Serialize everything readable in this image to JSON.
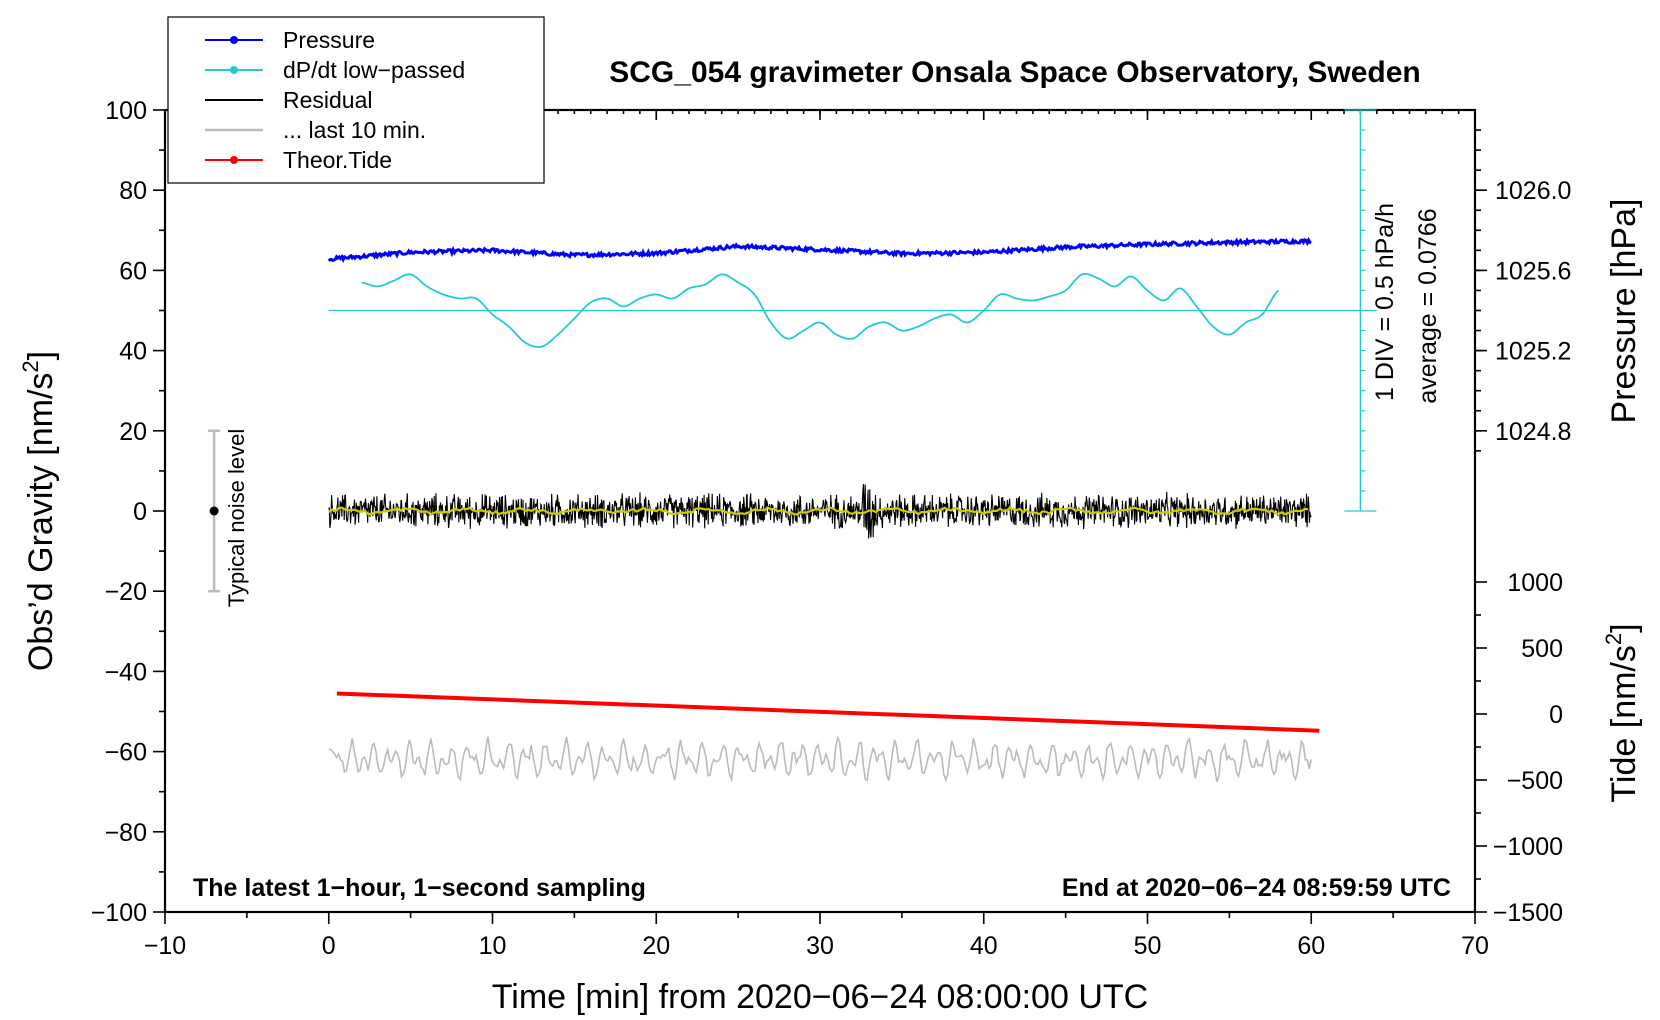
{
  "chart_data": {
    "type": "line",
    "title": "SCG_054 gravimeter Onsala Space Observatory, Sweden",
    "xlabel": "Time [min] from 2020−06−24 08:00:00 UTC",
    "ylabel": "Obs’d Gravity [nm/s",
    "ylabel_sup": "2",
    "ylabel_close": "]",
    "y_right_pressure_label": "Pressure [hPa]",
    "y_right_tide_label": "Tide [nm/s",
    "y_right_tide_sup": "2",
    "y_right_tide_close": "]",
    "xlim": [
      -10,
      70
    ],
    "ylim": [
      -100,
      100
    ],
    "x_ticks": [
      "−10",
      "0",
      "10",
      "20",
      "30",
      "40",
      "50",
      "60",
      "70"
    ],
    "y_ticks": [
      "100",
      "80",
      "60",
      "40",
      "20",
      "0",
      "−20",
      "−40",
      "−60",
      "−80",
      "−100"
    ],
    "pressure_ticks": [
      "1026.0",
      "1025.6",
      "1025.2",
      "1024.8"
    ],
    "pressure_range": [
      1024.6,
      1026.4
    ],
    "tide_ticks": [
      "1000",
      "500",
      "0",
      "−500",
      "−1000",
      "−1500"
    ],
    "tide_range": [
      -1500,
      1500
    ],
    "dpdt_scale_text": "1 DIV = 0.5 hPa/h",
    "dpdt_average_text": "average = 0.0766",
    "noise_bar_label": "Typical noise level",
    "noise_bar": {
      "x": -7,
      "y": 0,
      "low": -20,
      "high": 20
    },
    "annotation_left": "The latest 1−hour, 1−second sampling",
    "annotation_right": "End at 2020−06−24 08:59:59 UTC",
    "legend": [
      {
        "label": "Pressure",
        "color": "#0000ff",
        "marker": true
      },
      {
        "label": "dP/dt low−passed",
        "color": "#22cccc",
        "marker": true
      },
      {
        "label": "Residual",
        "color": "#000000",
        "marker": false
      },
      {
        "label": "... last 10 min.",
        "color": "#bbbbbb",
        "marker": false
      },
      {
        "label": "Theor.Tide",
        "color": "#ff0000",
        "marker": true
      }
    ],
    "series": [
      {
        "name": "Pressure",
        "color": "#0000ff",
        "x": [
          0,
          5,
          10,
          15,
          20,
          25,
          30,
          35,
          40,
          45,
          50,
          55,
          60
        ],
        "y": [
          62.8,
          64.5,
          65,
          63.8,
          64.3,
          66,
          65.2,
          64.2,
          64.5,
          65.8,
          66.5,
          67,
          67.3
        ]
      },
      {
        "name": "dP/dt low-passed",
        "color": "#22cccc",
        "x": [
          2,
          3,
          4,
          5,
          6,
          7,
          8,
          9,
          10,
          11,
          12,
          13,
          14,
          15,
          16,
          17,
          18,
          19,
          20,
          21,
          22,
          23,
          24,
          25,
          26,
          27,
          28,
          29,
          30,
          31,
          32,
          33,
          34,
          35,
          36,
          37,
          38,
          39,
          40,
          41,
          42,
          43,
          44,
          45,
          46,
          47,
          48,
          49,
          50,
          51,
          52,
          53,
          54,
          55,
          56,
          57,
          58
        ],
        "y": [
          57,
          56,
          57.5,
          59,
          56,
          54,
          53,
          53,
          49,
          46,
          42,
          41,
          44,
          48,
          52,
          53,
          51,
          53,
          54,
          53,
          55.5,
          56.5,
          59,
          57,
          54,
          47,
          43,
          45,
          47,
          44,
          43,
          46,
          47,
          45,
          46,
          48,
          49,
          47,
          50,
          54,
          53,
          52.5,
          53.5,
          55,
          59,
          58,
          56,
          58.5,
          55,
          52.5,
          55.5,
          51,
          46,
          44,
          47,
          49,
          55
        ]
      },
      {
        "name": "dP/dt average level",
        "color": "#22cccc",
        "x": [
          0,
          64
        ],
        "y": [
          50,
          50
        ]
      },
      {
        "name": "Residual",
        "color": "#000000",
        "x_range": [
          0,
          60
        ],
        "center": 0,
        "amplitude": 5
      },
      {
        "name": "Residual smoothed",
        "color": "#cccc00",
        "x_range": [
          0,
          60
        ],
        "center": 0,
        "amplitude": 0.8
      },
      {
        "name": "... last 10 min.",
        "color": "#bbbbbb",
        "x_range": [
          0,
          60
        ],
        "center": -62,
        "amplitude": 5
      },
      {
        "name": "Theor.Tide",
        "color": "#ff0000",
        "x": [
          0.5,
          60.5
        ],
        "y": [
          -45.5,
          -54.8
        ]
      }
    ]
  }
}
